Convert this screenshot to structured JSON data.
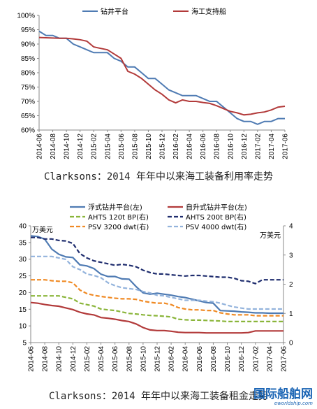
{
  "caption1": "Clarksons：2014 年年中以来海工装备利用率走势",
  "caption2": "Clarksons：2014 年年中以来海工装备租金走势",
  "watermark": {
    "main": "国际船舶网",
    "sub": "eworldship.com"
  },
  "colors": {
    "blue": "#4f7bb3",
    "red": "#b23a3a",
    "green": "#8ab53a",
    "navy": "#1f2d6e",
    "orange": "#f08a24",
    "lightblue": "#93b3dc"
  },
  "chart_data": [
    {
      "type": "line",
      "x": [
        "2014-06",
        "2014-07",
        "2014-08",
        "2014-09",
        "2014-10",
        "2014-11",
        "2014-12",
        "2015-01",
        "2015-02",
        "2015-03",
        "2015-04",
        "2015-05",
        "2015-06",
        "2015-07",
        "2015-08",
        "2015-09",
        "2015-10",
        "2015-11",
        "2015-12",
        "2016-01",
        "2016-02",
        "2016-03",
        "2016-04",
        "2016-05",
        "2016-06",
        "2016-07",
        "2016-08",
        "2016-09",
        "2016-10",
        "2016-11",
        "2016-12",
        "2017-01",
        "2017-02",
        "2017-03",
        "2017-04",
        "2017-05",
        "2017-06"
      ],
      "xticks": [
        "2014-06",
        "2014-08",
        "2014-10",
        "2014-12",
        "2015-02",
        "2015-04",
        "2015-06",
        "2015-08",
        "2015-10",
        "2015-12",
        "2016-02",
        "2016-04",
        "2016-06",
        "2016-08",
        "2016-10",
        "2016-12",
        "2017-02",
        "2017-04",
        "2017-06"
      ],
      "yticks": [
        "60%",
        "65%",
        "70%",
        "75%",
        "80%",
        "85%",
        "90%",
        "95%",
        "100%"
      ],
      "ylim": [
        60,
        100
      ],
      "series": [
        {
          "name": "钻井平台",
          "color_key": "blue",
          "dash": "solid",
          "values": [
            94.5,
            93,
            93,
            92,
            92,
            90,
            89,
            88,
            87,
            87,
            87,
            85,
            84,
            82,
            82,
            80,
            78,
            78,
            76,
            74,
            73,
            72,
            72,
            72,
            71,
            70,
            70,
            68,
            66,
            64,
            63,
            63,
            62,
            63,
            63,
            64,
            64
          ]
        },
        {
          "name": "海工支持船",
          "color_key": "red",
          "dash": "solid",
          "values": [
            92.3,
            92.2,
            92.1,
            92,
            92,
            91.8,
            91.5,
            91,
            89,
            88.5,
            88,
            86.5,
            85,
            80.5,
            79.5,
            78,
            76,
            74,
            72.5,
            70.5,
            69.5,
            70.5,
            70,
            70,
            69.6,
            69.3,
            68.5,
            67.5,
            66.5,
            66,
            65.3,
            65.5,
            66,
            66.3,
            67,
            68,
            68.3
          ]
        }
      ]
    },
    {
      "type": "line",
      "x": [
        "2014-06",
        "2014-07",
        "2014-08",
        "2014-09",
        "2014-10",
        "2014-11",
        "2014-12",
        "2015-01",
        "2015-02",
        "2015-03",
        "2015-04",
        "2015-05",
        "2015-06",
        "2015-07",
        "2015-08",
        "2015-09",
        "2015-10",
        "2015-11",
        "2015-12",
        "2016-01",
        "2016-02",
        "2016-03",
        "2016-04",
        "2016-05",
        "2016-06",
        "2016-07",
        "2016-08",
        "2016-09",
        "2016-10",
        "2016-11",
        "2016-12",
        "2017-01",
        "2017-02",
        "2017-03",
        "2017-04",
        "2017-05",
        "2017-06"
      ],
      "xticks": [
        "2014-06",
        "2014-08",
        "2014-10",
        "2014-12",
        "2015-02",
        "2015-04",
        "2015-06",
        "2015-08",
        "2015-10",
        "2015-12",
        "2016-02",
        "2016-04",
        "2016-06",
        "2016-08",
        "2016-10",
        "2016-12",
        "2017-02",
        "2017-04",
        "2017-06"
      ],
      "yticks_left": [
        "5",
        "10",
        "15",
        "20",
        "25",
        "30",
        "35",
        "40"
      ],
      "yticks_right": [
        "0",
        "1",
        "2",
        "3",
        "4"
      ],
      "ylim_left": [
        5,
        40
      ],
      "ylim_right": [
        0,
        4
      ],
      "unit_left": "万美元",
      "unit_right": "万美元",
      "series": [
        {
          "name": "浮式钻井平台(左)",
          "color_key": "blue",
          "dash": "solid",
          "axis": "left",
          "values": [
            37,
            36.8,
            36,
            33,
            31.5,
            30.7,
            30.5,
            28.3,
            28,
            27.2,
            25.5,
            24.8,
            24.8,
            24.1,
            24,
            21.8,
            19.9,
            19.5,
            19.8,
            19.5,
            19.2,
            18.8,
            18.5,
            18,
            17.5,
            17,
            16.8,
            14.6,
            14.5,
            14.4,
            14.2,
            14.1,
            13.9,
            13.9,
            13.8,
            13.8,
            13.8
          ]
        },
        {
          "name": "自升式钻井平台(左)",
          "color_key": "red",
          "dash": "solid",
          "axis": "left",
          "values": [
            17,
            16.8,
            16.4,
            16.1,
            15.9,
            15.4,
            14.9,
            14.1,
            13.6,
            13.3,
            12.5,
            12.3,
            12,
            11.6,
            11.3,
            10.6,
            9.5,
            8.8,
            8.6,
            8.6,
            8.4,
            8.1,
            8,
            8,
            8,
            7.9,
            7.9,
            7.9,
            7.9,
            7.9,
            7.9,
            8,
            8.5,
            8.5,
            8.5,
            8.5,
            8.5
          ]
        },
        {
          "name": "AHTS 120t BP(右)",
          "color_key": "green",
          "dash": "dash",
          "axis": "right",
          "values": [
            1.6,
            1.6,
            1.6,
            1.6,
            1.6,
            1.55,
            1.5,
            1.35,
            1.3,
            1.25,
            1.15,
            1.12,
            1.1,
            1.05,
            1.0,
            0.98,
            0.95,
            0.93,
            0.92,
            0.9,
            0.88,
            0.8,
            0.78,
            0.77,
            0.77,
            0.76,
            0.75,
            0.74,
            0.72,
            0.72,
            0.72,
            0.72,
            0.72,
            0.72,
            0.72,
            0.72,
            0.72
          ]
        },
        {
          "name": "AHTS 200t BP(右)",
          "color_key": "navy",
          "dash": "dash",
          "axis": "right",
          "values": [
            3.6,
            3.6,
            3.55,
            3.55,
            3.5,
            3.48,
            3.4,
            3.05,
            2.9,
            2.8,
            2.75,
            2.7,
            2.65,
            2.68,
            2.65,
            2.6,
            2.48,
            2.4,
            2.35,
            2.35,
            2.32,
            2.3,
            2.28,
            2.3,
            2.3,
            2.28,
            2.26,
            2.24,
            2.24,
            2.2,
            2.12,
            2.1,
            2.02,
            2.15,
            2.15,
            2.15,
            2.15
          ]
        },
        {
          "name": "PSV 3200 dwt(右)",
          "color_key": "orange",
          "dash": "dash",
          "axis": "right",
          "values": [
            2.15,
            2.15,
            2.15,
            2.12,
            2.1,
            2.1,
            2.05,
            1.8,
            1.68,
            1.62,
            1.58,
            1.55,
            1.52,
            1.5,
            1.5,
            1.48,
            1.42,
            1.38,
            1.35,
            1.35,
            1.3,
            1.2,
            1.15,
            1.12,
            1.12,
            1.1,
            1.1,
            1.02,
            0.98,
            0.95,
            0.95,
            0.95,
            0.92,
            0.92,
            0.92,
            0.92,
            0.92
          ]
        },
        {
          "name": "PSV 4000 dwt(右)",
          "color_key": "lightblue",
          "dash": "dash",
          "axis": "right",
          "values": [
            2.95,
            2.95,
            2.95,
            2.95,
            2.9,
            2.85,
            2.6,
            2.5,
            2.35,
            2.3,
            2.22,
            2.05,
            1.95,
            1.88,
            1.85,
            1.82,
            1.75,
            1.7,
            1.62,
            1.6,
            1.55,
            1.5,
            1.45,
            1.45,
            1.45,
            1.42,
            1.4,
            1.35,
            1.28,
            1.22,
            1.18,
            1.15,
            1.15,
            1.15,
            1.15,
            1.15,
            1.15
          ]
        }
      ]
    }
  ]
}
